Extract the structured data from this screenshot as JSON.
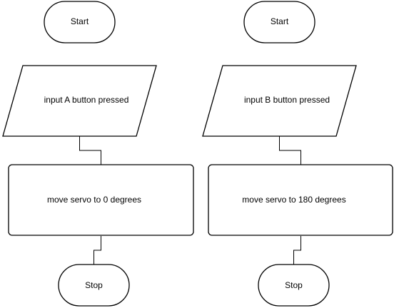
{
  "flowcharts": [
    {
      "start": "Start",
      "input": "input A button pressed",
      "process": "move servo to 0 degrees",
      "stop": "Stop"
    },
    {
      "start": "Start",
      "input": "input B button pressed",
      "process": "move servo to 180 degrees",
      "stop": "Stop"
    }
  ]
}
